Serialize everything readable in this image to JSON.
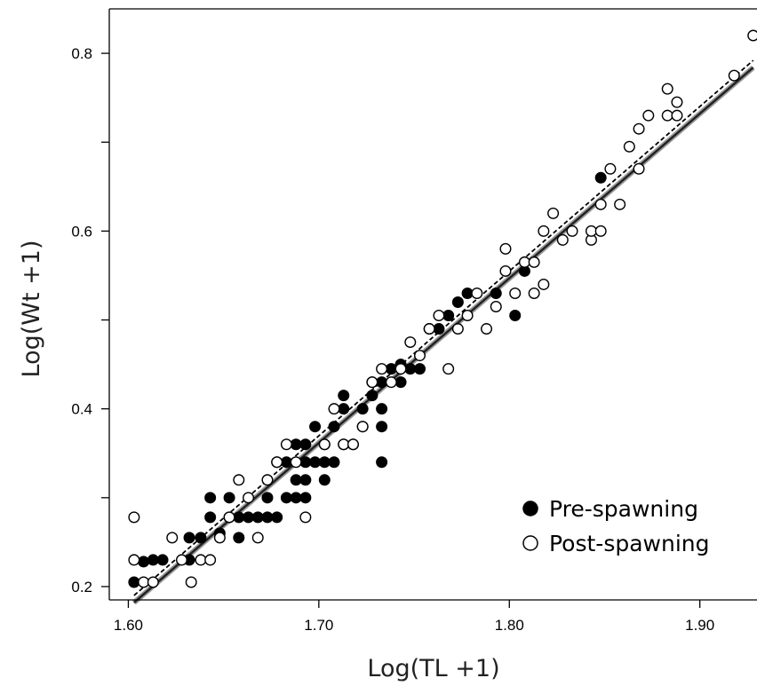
{
  "chart_data": {
    "type": "scatter",
    "title": "",
    "xlabel": "Log(TL +1)",
    "ylabel": "Log(Wt +1)",
    "xlim": [
      1.59,
      1.93
    ],
    "ylim": [
      0.185,
      0.85
    ],
    "x_ticks": [
      1.6,
      1.7,
      1.8,
      1.9
    ],
    "x_tick_labels": [
      "1.60",
      "1.70",
      "1.80",
      "1.90"
    ],
    "y_ticks": [
      0.2,
      0.3,
      0.4,
      0.5,
      0.6,
      0.7,
      0.8
    ],
    "y_tick_labels": [
      "0.2",
      "",
      "0.4",
      "",
      "0.6",
      "",
      "0.8"
    ],
    "grid": false,
    "legend_position": "bottom-right",
    "colors": {
      "pre": "#000000",
      "post_fill": "#ffffff",
      "post_stroke": "#000000",
      "fit_main": "#222222",
      "fit_outline": "#9a9a9a"
    },
    "series": [
      {
        "name": "Pre-spawning",
        "marker": "filled-circle",
        "points": [
          [
            1.603,
            0.205
          ],
          [
            1.608,
            0.228
          ],
          [
            1.613,
            0.23
          ],
          [
            1.618,
            0.23
          ],
          [
            1.632,
            0.255
          ],
          [
            1.632,
            0.23
          ],
          [
            1.638,
            0.255
          ],
          [
            1.643,
            0.3
          ],
          [
            1.643,
            0.278
          ],
          [
            1.648,
            0.26
          ],
          [
            1.653,
            0.3
          ],
          [
            1.653,
            0.278
          ],
          [
            1.658,
            0.255
          ],
          [
            1.658,
            0.278
          ],
          [
            1.663,
            0.278
          ],
          [
            1.668,
            0.278
          ],
          [
            1.673,
            0.3
          ],
          [
            1.673,
            0.278
          ],
          [
            1.678,
            0.278
          ],
          [
            1.678,
            0.34
          ],
          [
            1.683,
            0.3
          ],
          [
            1.683,
            0.34
          ],
          [
            1.688,
            0.3
          ],
          [
            1.688,
            0.36
          ],
          [
            1.688,
            0.32
          ],
          [
            1.693,
            0.32
          ],
          [
            1.693,
            0.3
          ],
          [
            1.693,
            0.36
          ],
          [
            1.693,
            0.34
          ],
          [
            1.698,
            0.38
          ],
          [
            1.698,
            0.34
          ],
          [
            1.703,
            0.34
          ],
          [
            1.703,
            0.36
          ],
          [
            1.703,
            0.32
          ],
          [
            1.708,
            0.34
          ],
          [
            1.708,
            0.38
          ],
          [
            1.713,
            0.36
          ],
          [
            1.713,
            0.4
          ],
          [
            1.713,
            0.415
          ],
          [
            1.718,
            0.36
          ],
          [
            1.723,
            0.38
          ],
          [
            1.723,
            0.4
          ],
          [
            1.728,
            0.415
          ],
          [
            1.728,
            0.43
          ],
          [
            1.733,
            0.4
          ],
          [
            1.733,
            0.43
          ],
          [
            1.733,
            0.38
          ],
          [
            1.733,
            0.34
          ],
          [
            1.738,
            0.445
          ],
          [
            1.743,
            0.43
          ],
          [
            1.743,
            0.45
          ],
          [
            1.748,
            0.445
          ],
          [
            1.753,
            0.445
          ],
          [
            1.758,
            0.49
          ],
          [
            1.763,
            0.49
          ],
          [
            1.768,
            0.505
          ],
          [
            1.773,
            0.52
          ],
          [
            1.778,
            0.53
          ],
          [
            1.793,
            0.53
          ],
          [
            1.803,
            0.505
          ],
          [
            1.808,
            0.555
          ],
          [
            1.848,
            0.66
          ]
        ]
      },
      {
        "name": "Post-spawning",
        "marker": "open-circle",
        "points": [
          [
            1.603,
            0.278
          ],
          [
            1.603,
            0.23
          ],
          [
            1.608,
            0.205
          ],
          [
            1.613,
            0.205
          ],
          [
            1.623,
            0.255
          ],
          [
            1.628,
            0.23
          ],
          [
            1.633,
            0.205
          ],
          [
            1.638,
            0.23
          ],
          [
            1.643,
            0.23
          ],
          [
            1.648,
            0.255
          ],
          [
            1.653,
            0.278
          ],
          [
            1.658,
            0.32
          ],
          [
            1.663,
            0.3
          ],
          [
            1.668,
            0.255
          ],
          [
            1.673,
            0.32
          ],
          [
            1.678,
            0.34
          ],
          [
            1.683,
            0.36
          ],
          [
            1.688,
            0.34
          ],
          [
            1.693,
            0.278
          ],
          [
            1.703,
            0.36
          ],
          [
            1.708,
            0.4
          ],
          [
            1.713,
            0.36
          ],
          [
            1.718,
            0.36
          ],
          [
            1.723,
            0.38
          ],
          [
            1.728,
            0.43
          ],
          [
            1.733,
            0.445
          ],
          [
            1.738,
            0.43
          ],
          [
            1.743,
            0.445
          ],
          [
            1.748,
            0.475
          ],
          [
            1.753,
            0.46
          ],
          [
            1.758,
            0.49
          ],
          [
            1.763,
            0.505
          ],
          [
            1.768,
            0.445
          ],
          [
            1.773,
            0.49
          ],
          [
            1.778,
            0.505
          ],
          [
            1.783,
            0.53
          ],
          [
            1.788,
            0.49
          ],
          [
            1.793,
            0.515
          ],
          [
            1.798,
            0.58
          ],
          [
            1.798,
            0.555
          ],
          [
            1.803,
            0.53
          ],
          [
            1.808,
            0.565
          ],
          [
            1.813,
            0.53
          ],
          [
            1.813,
            0.565
          ],
          [
            1.818,
            0.6
          ],
          [
            1.818,
            0.54
          ],
          [
            1.823,
            0.62
          ],
          [
            1.828,
            0.59
          ],
          [
            1.833,
            0.6
          ],
          [
            1.843,
            0.59
          ],
          [
            1.843,
            0.6
          ],
          [
            1.848,
            0.6
          ],
          [
            1.848,
            0.63
          ],
          [
            1.853,
            0.67
          ],
          [
            1.858,
            0.63
          ],
          [
            1.863,
            0.695
          ],
          [
            1.868,
            0.715
          ],
          [
            1.868,
            0.67
          ],
          [
            1.873,
            0.73
          ],
          [
            1.883,
            0.73
          ],
          [
            1.883,
            0.76
          ],
          [
            1.888,
            0.745
          ],
          [
            1.888,
            0.73
          ],
          [
            1.918,
            0.775
          ],
          [
            1.928,
            0.82
          ]
        ]
      }
    ],
    "fit_lines": [
      {
        "style": "solid",
        "x": [
          1.603,
          1.928
        ],
        "y": [
          0.182,
          0.784
        ]
      },
      {
        "style": "dashed",
        "x": [
          1.603,
          1.928
        ],
        "y": [
          0.19,
          0.792
        ]
      }
    ]
  }
}
